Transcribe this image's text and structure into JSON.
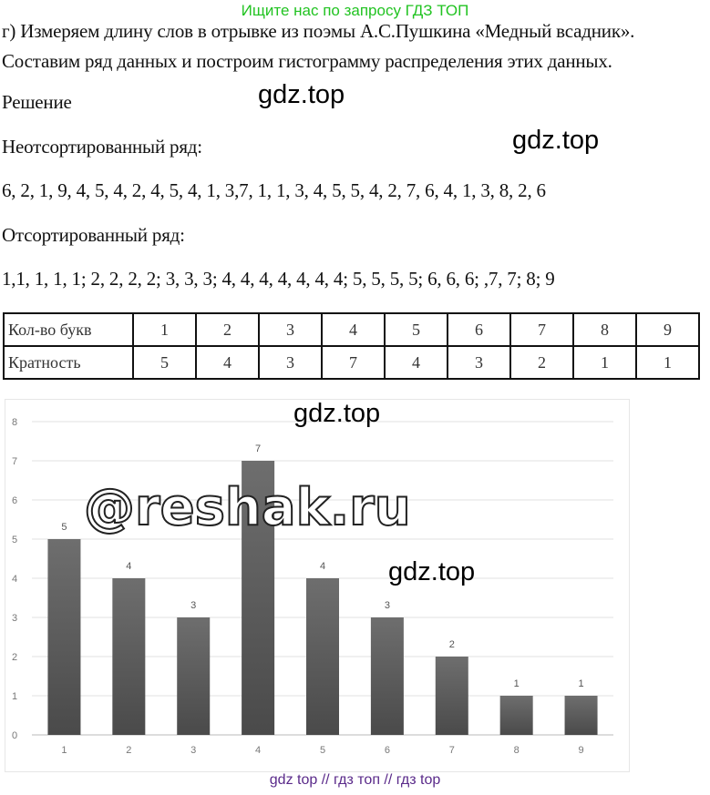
{
  "banner": "Ищите нас по запросу ГДЗ ТОП",
  "task_line1": "г) Измеряем длину слов в отрывке из поэмы А.С.Пушкина «Медный всадник».",
  "task_line2": "Составим ряд данных и построим гистограмму распределения этих данных.",
  "solution_label": "Решение",
  "unsorted_label": "Неотсортированный ряд:",
  "unsorted": "6, 2, 1, 9, 4, 5, 4, 2, 4, 5, 4, 1, 3,7, 1, 1, 3, 4, 5, 5, 4, 2, 7, 6, 4, 1, 3, 8, 2, 6",
  "sorted_label": "Отсортированный ряд:",
  "sorted": "1,1, 1, 1, 1; 2, 2, 2, 2; 3, 3, 3; 4, 4, 4, 4, 4, 4, 4; 5, 5, 5, 5; 6, 6, 6; ,7, 7; 8; 9",
  "table": {
    "row1": {
      "header": "Кол-во букв",
      "cells": [
        "1",
        "2",
        "3",
        "4",
        "5",
        "6",
        "7",
        "8",
        "9"
      ]
    },
    "row2": {
      "header": "Кратность",
      "cells": [
        "5",
        "4",
        "3",
        "7",
        "4",
        "3",
        "2",
        "1",
        "1"
      ]
    }
  },
  "watermarks": {
    "gdz1": "gdz.top",
    "gdz2": "gdz.top",
    "gdz3": "gdz.top",
    "gdz4": "gdz.top",
    "reshak": "@reshak.ru"
  },
  "footer": "gdz top  //  гдз топ  //  гдз top",
  "chart_data": {
    "type": "bar",
    "categories": [
      "1",
      "2",
      "3",
      "4",
      "5",
      "6",
      "7",
      "8",
      "9"
    ],
    "values": [
      5,
      4,
      3,
      7,
      4,
      3,
      2,
      1,
      1
    ],
    "yticks": [
      "0",
      "1",
      "2",
      "3",
      "4",
      "5",
      "6",
      "7",
      "8"
    ],
    "ylim": [
      0,
      8
    ],
    "grid": true,
    "data_labels": true,
    "bar_color": "#5a5a5a"
  }
}
